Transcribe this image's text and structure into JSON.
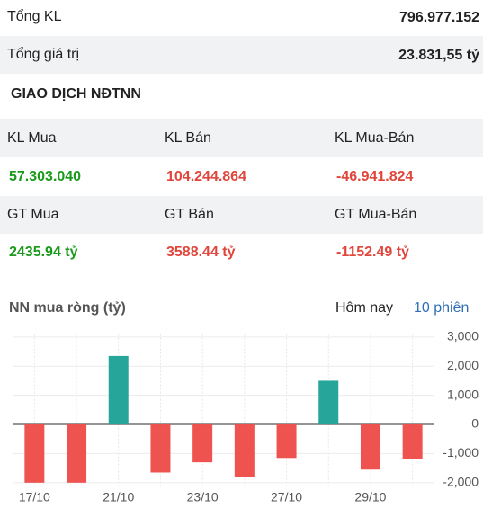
{
  "summary": {
    "rows": [
      [
        "Tổng KL",
        "796.977.152"
      ],
      [
        "Tổng giá trị",
        "23.831,55 tỷ"
      ]
    ]
  },
  "section_title": "GIAO DỊCH NĐTNN",
  "foreign": {
    "rows": [
      [
        "KL Mua",
        "KL Bán",
        "KL Mua-Bán"
      ],
      [
        "57.303.040",
        "104.244.864",
        "-46.941.824"
      ],
      [
        "GT Mua",
        "GT Bán",
        "GT Mua-Bán"
      ],
      [
        "2435.94 tỷ",
        "3588.44 tỷ",
        "-1152.49 tỷ"
      ]
    ]
  },
  "chart_tabs": [
    "Hôm nay",
    "10 phiên"
  ],
  "chart_data": {
    "type": "bar",
    "title": "NN mua ròng (tỷ)",
    "categories": [
      "17/10",
      null,
      "21/10",
      null,
      "23/10",
      null,
      "27/10",
      null,
      "29/10",
      null
    ],
    "values": [
      -2000,
      -2000,
      2350,
      -1650,
      -1300,
      -1800,
      -1150,
      1500,
      -1550,
      -1200
    ],
    "positive_color": "#26a69a",
    "negative_color": "#ef5350",
    "ylim": [
      -2200,
      3100
    ],
    "yticks": [
      {
        "value": 3000,
        "label": "3,000"
      },
      {
        "value": 2000,
        "label": "2,000"
      },
      {
        "value": 1000,
        "label": "1,000"
      },
      0,
      {
        "value": -1000,
        "label": "-1,000"
      },
      {
        "value": -2000,
        "label": "-2,000"
      }
    ],
    "grid": true
  }
}
